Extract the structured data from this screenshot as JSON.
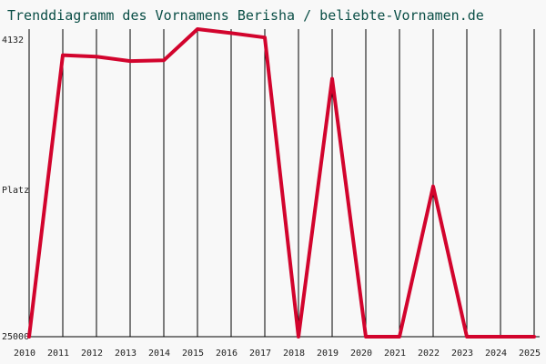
{
  "chart_data": {
    "type": "line",
    "title": "Trenddiagramm des Vornamens Berisha / beliebte-Vornamen.de",
    "ylabel": "Platz",
    "y_top_label": "4132",
    "y_bottom_label": "25000",
    "ylim": [
      25000,
      4132
    ],
    "grid": "vertical",
    "categories": [
      "2010",
      "2011",
      "2012",
      "2013",
      "2014",
      "2015",
      "2016",
      "2017",
      "2018",
      "2019",
      "2020",
      "2021",
      "2022",
      "2023",
      "2024",
      "2025"
    ],
    "series": [
      {
        "color": "#d2042d",
        "values": [
          25000,
          5900,
          6000,
          6300,
          6250,
          4132,
          4400,
          4700,
          25000,
          7500,
          25000,
          25000,
          14800,
          25000,
          25000,
          25000
        ]
      }
    ]
  }
}
